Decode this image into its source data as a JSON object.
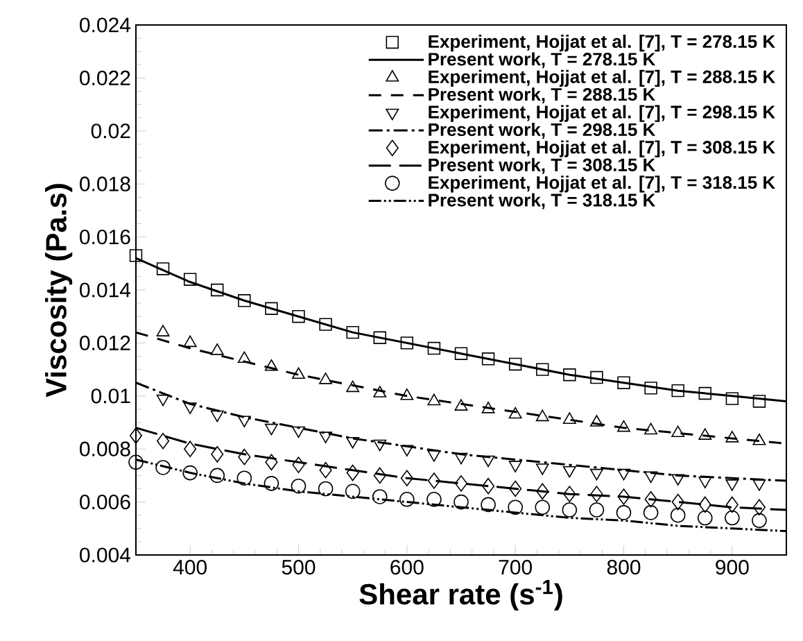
{
  "chart_data": {
    "type": "scatter",
    "xlabel": "Shear rate (s$^{-1}$)",
    "ylabel": "Viscosity (Pa.s)",
    "xlim": [
      350,
      950
    ],
    "ylim": [
      0.004,
      0.024
    ],
    "xticks": [
      400,
      500,
      600,
      700,
      800,
      900
    ],
    "yticks": [
      0.004,
      0.006,
      0.008,
      0.01,
      0.012,
      0.014,
      0.016,
      0.018,
      0.02,
      0.022,
      0.024
    ],
    "grid": false,
    "legend": "top right",
    "series": [
      {
        "name": "Experiment, Hojjat et al. [7], T = 278.15 K",
        "marker": "square",
        "color": "#000000",
        "x": [
          350,
          375,
          400,
          425,
          450,
          475,
          500,
          525,
          550,
          575,
          600,
          625,
          650,
          675,
          700,
          725,
          750,
          775,
          800,
          825,
          850,
          875,
          900,
          925
        ],
        "values": [
          0.0153,
          0.0148,
          0.0144,
          0.014,
          0.0136,
          0.0133,
          0.013,
          0.0127,
          0.0124,
          0.0122,
          0.012,
          0.0118,
          0.0116,
          0.0114,
          0.0112,
          0.011,
          0.0108,
          0.0107,
          0.0105,
          0.0103,
          0.0102,
          0.0101,
          0.0099,
          0.0098
        ]
      },
      {
        "name": "Present work, T = 278.15 K",
        "type": "line",
        "line_style": "solid",
        "color": "#000000",
        "x": [
          350,
          400,
          450,
          500,
          550,
          600,
          650,
          700,
          750,
          800,
          850,
          900,
          950
        ],
        "values": [
          0.0152,
          0.0143,
          0.0136,
          0.013,
          0.0124,
          0.012,
          0.0116,
          0.0112,
          0.0108,
          0.0105,
          0.0102,
          0.01,
          0.0098
        ]
      },
      {
        "name": "Experiment, Hojjat et al. [7], T = 288.15 K",
        "marker": "triangle",
        "color": "#000000",
        "x": [
          375,
          400,
          425,
          450,
          475,
          500,
          525,
          550,
          575,
          600,
          625,
          650,
          675,
          700,
          725,
          750,
          775,
          800,
          825,
          850,
          875,
          900,
          925
        ],
        "values": [
          0.0124,
          0.012,
          0.0117,
          0.0114,
          0.0111,
          0.0108,
          0.0106,
          0.0103,
          0.0101,
          0.01,
          0.0098,
          0.0096,
          0.0095,
          0.0093,
          0.0092,
          0.0091,
          0.009,
          0.0088,
          0.0087,
          0.0086,
          0.0085,
          0.0084,
          0.0083
        ]
      },
      {
        "name": "Present work, T = 288.15 K",
        "type": "line",
        "line_style": "dashed",
        "color": "#000000",
        "x": [
          350,
          400,
          450,
          500,
          550,
          600,
          650,
          700,
          750,
          800,
          850,
          900,
          950
        ],
        "values": [
          0.0124,
          0.0118,
          0.0113,
          0.0108,
          0.0104,
          0.01,
          0.0097,
          0.0094,
          0.0091,
          0.0088,
          0.0086,
          0.0084,
          0.0082
        ]
      },
      {
        "name": "Experiment, Hojjat et al. [7], T = 298.15 K",
        "marker": "triangle-down",
        "color": "#000000",
        "x": [
          375,
          400,
          425,
          450,
          475,
          500,
          525,
          550,
          575,
          600,
          625,
          650,
          675,
          700,
          725,
          750,
          775,
          800,
          825,
          850,
          875,
          900,
          925
        ],
        "values": [
          0.0099,
          0.0096,
          0.0093,
          0.0091,
          0.0088,
          0.0087,
          0.0085,
          0.0083,
          0.0082,
          0.008,
          0.0078,
          0.0077,
          0.0076,
          0.0074,
          0.0073,
          0.0072,
          0.0071,
          0.0071,
          0.007,
          0.0069,
          0.0068,
          0.0067,
          0.0067
        ]
      },
      {
        "name": "Present work, T = 298.15 K",
        "type": "line",
        "line_style": "dashdot",
        "color": "#000000",
        "x": [
          350,
          400,
          450,
          500,
          550,
          600,
          650,
          700,
          750,
          800,
          850,
          900,
          950
        ],
        "values": [
          0.0105,
          0.0097,
          0.0092,
          0.0088,
          0.0084,
          0.0081,
          0.0078,
          0.0076,
          0.0074,
          0.0072,
          0.007,
          0.0069,
          0.0068
        ]
      },
      {
        "name": "Experiment, Hojjat et al. [7], T = 308.15 K",
        "marker": "diamond",
        "color": "#000000",
        "x": [
          350,
          375,
          400,
          425,
          450,
          475,
          500,
          525,
          550,
          575,
          600,
          625,
          650,
          675,
          700,
          725,
          750,
          775,
          800,
          825,
          850,
          875,
          900,
          925
        ],
        "values": [
          0.0085,
          0.0083,
          0.008,
          0.0078,
          0.0077,
          0.0075,
          0.0074,
          0.0072,
          0.0071,
          0.007,
          0.0069,
          0.0068,
          0.0067,
          0.0066,
          0.0065,
          0.0064,
          0.0063,
          0.0063,
          0.0062,
          0.0061,
          0.006,
          0.0059,
          0.0059,
          0.0058
        ]
      },
      {
        "name": "Present work, T = 308.15 K",
        "type": "line",
        "line_style": "longdash",
        "color": "#000000",
        "x": [
          350,
          400,
          450,
          500,
          550,
          600,
          650,
          700,
          750,
          800,
          850,
          900,
          950
        ],
        "values": [
          0.0088,
          0.0082,
          0.0078,
          0.0075,
          0.0072,
          0.0069,
          0.0067,
          0.0065,
          0.0063,
          0.0062,
          0.006,
          0.0058,
          0.0057
        ]
      },
      {
        "name": "Experiment, Hojjat et al. [7], T = 318.15 K",
        "marker": "circle",
        "color": "#000000",
        "x": [
          350,
          375,
          400,
          425,
          450,
          475,
          500,
          525,
          550,
          575,
          600,
          625,
          650,
          675,
          700,
          725,
          750,
          775,
          800,
          825,
          850,
          875,
          900,
          925
        ],
        "values": [
          0.0075,
          0.0073,
          0.0071,
          0.007,
          0.0069,
          0.0067,
          0.0066,
          0.0065,
          0.0064,
          0.0062,
          0.0061,
          0.0061,
          0.006,
          0.0059,
          0.0058,
          0.0058,
          0.0057,
          0.0057,
          0.0056,
          0.0056,
          0.0055,
          0.0054,
          0.0054,
          0.0053
        ]
      },
      {
        "name": "Present work, T = 318.15 K",
        "type": "line",
        "line_style": "dashdotdot",
        "color": "#000000",
        "x": [
          350,
          400,
          450,
          500,
          550,
          600,
          650,
          700,
          750,
          800,
          850,
          900,
          950
        ],
        "values": [
          0.0076,
          0.0071,
          0.0067,
          0.0064,
          0.0062,
          0.006,
          0.0058,
          0.0056,
          0.0054,
          0.0053,
          0.0051,
          0.005,
          0.0049
        ]
      }
    ]
  }
}
